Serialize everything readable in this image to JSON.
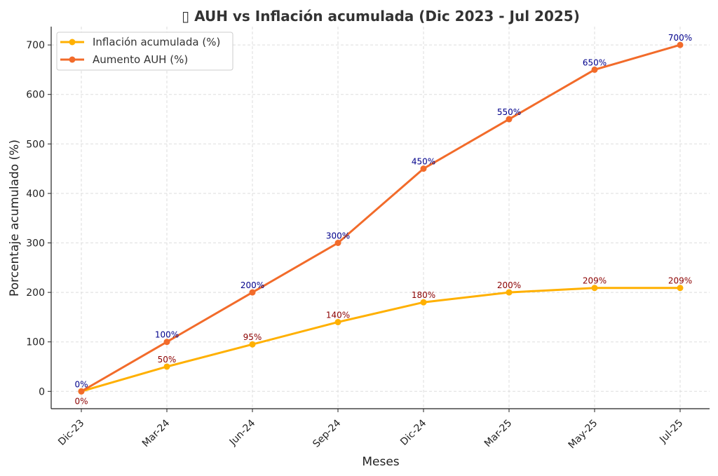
{
  "chart_data": {
    "type": "line",
    "title": "▯ AUH vs Inflación acumulada (Dic 2023 - Jul 2025)",
    "xlabel": "Meses",
    "ylabel": "Porcentaje acumulado (%)",
    "categories": [
      "Dic-23",
      "Mar-24",
      "Jun-24",
      "Sep-24",
      "Dic-24",
      "Mar-25",
      "May-25",
      "Jul-25"
    ],
    "yticks": [
      0,
      100,
      200,
      300,
      400,
      500,
      600,
      700
    ],
    "ylim": [
      -35,
      737
    ],
    "grid": true,
    "legend_position": "top-left",
    "series": [
      {
        "name": "Inflación acumulada (%)",
        "values": [
          0,
          50,
          95,
          140,
          180,
          200,
          209,
          209
        ],
        "color": "#FFB000",
        "label_color": "#8B0000",
        "labels": [
          "0%",
          "50%",
          "95%",
          "140%",
          "180%",
          "200%",
          "209%",
          "209%"
        ]
      },
      {
        "name": "Aumento AUH (%)",
        "values": [
          0,
          100,
          200,
          300,
          450,
          550,
          650,
          700
        ],
        "color": "#F26B2A",
        "label_color": "#00008B",
        "labels": [
          "0%",
          "100%",
          "200%",
          "300%",
          "450%",
          "550%",
          "650%",
          "700%"
        ]
      }
    ]
  }
}
